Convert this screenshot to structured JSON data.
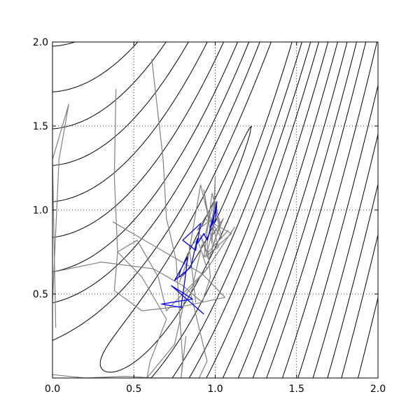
{
  "chart_data": {
    "type": "line",
    "title": "",
    "xlabel": "",
    "ylabel": "",
    "xlim": [
      0.0,
      2.0
    ],
    "ylim": [
      0.0,
      2.0
    ],
    "grid": true,
    "x_ticks": [
      "0.0",
      "0.5",
      "1.0",
      "1.5",
      "2.0"
    ],
    "y_ticks": [
      "0.5",
      "1.0",
      "1.5",
      "2.0"
    ],
    "contour_levels": [
      0.05,
      0.5,
      1.5,
      3,
      5,
      8,
      12,
      17,
      23,
      30,
      40,
      52,
      66,
      82,
      100,
      125
    ],
    "colors": {
      "contour": "#000000",
      "gray_series": "#808080",
      "blue_series": "#0000ff"
    },
    "series": [
      {
        "color": "gray",
        "x": [
          0.02,
          0.0,
          0.1,
          0.04,
          0.0
        ],
        "y": [
          0.3,
          1.3,
          1.63,
          1.3,
          0.45
        ]
      },
      {
        "color": "gray",
        "x": [
          0.0,
          0.3,
          0.62,
          0.8,
          0.92,
          0.97,
          0.95,
          1.0,
          1.03,
          0.98,
          1.05,
          0.97,
          1.0
        ],
        "y": [
          0.63,
          0.69,
          0.65,
          0.55,
          0.45,
          0.6,
          0.8,
          1.05,
          0.9,
          0.78,
          0.95,
          0.83,
          0.88
        ]
      },
      {
        "color": "gray",
        "x": [
          0.0,
          0.2,
          0.45,
          0.62,
          0.9,
          0.95,
          0.85,
          0.92
        ],
        "y": [
          0.02,
          0.0,
          0.01,
          0.0,
          0.0,
          0.1,
          0.5,
          0.8
        ]
      },
      {
        "color": "gray",
        "x": [
          0.39,
          0.38,
          0.4,
          0.55,
          0.7,
          0.6,
          0.58,
          0.75,
          0.82,
          0.95,
          0.9
        ],
        "y": [
          1.72,
          1.2,
          0.75,
          0.6,
          0.35,
          0.1,
          0.0,
          0.2,
          0.5,
          0.65,
          0.8
        ]
      },
      {
        "color": "gray",
        "x": [
          0.61,
          0.68,
          0.7,
          0.76,
          0.78,
          0.8,
          0.79,
          0.82
        ],
        "y": [
          1.9,
          1.3,
          0.95,
          0.7,
          0.4,
          0.1,
          0.0,
          0.25
        ]
      },
      {
        "color": "gray",
        "x": [
          0.37,
          0.6,
          0.92,
          1.06,
          0.82,
          0.55,
          0.38,
          0.4,
          0.52,
          0.65,
          0.7,
          0.95,
          1.12
        ],
        "y": [
          0.93,
          0.8,
          0.62,
          0.48,
          0.43,
          0.4,
          0.52,
          0.75,
          0.82,
          0.6,
          0.4,
          0.65,
          0.9
        ]
      },
      {
        "color": "gray",
        "x": [
          0.78,
          0.83,
          0.91,
          0.96,
          0.93,
          0.98,
          1.0,
          0.99,
          0.95,
          0.91,
          0.96,
          1.03,
          0.98,
          0.93,
          1.08
        ],
        "y": [
          0.57,
          0.7,
          1.15,
          0.95,
          1.12,
          0.8,
          1.2,
          0.9,
          0.75,
          0.85,
          0.7,
          0.92,
          1.1,
          0.72,
          0.88
        ]
      },
      {
        "color": "gray",
        "x": [
          0.88,
          0.86,
          0.84,
          0.94,
          0.99,
          1.04,
          0.97,
          0.89,
          0.96,
          1.02,
          0.94,
          1.1,
          0.93
        ],
        "y": [
          0.45,
          0.62,
          0.78,
          0.86,
          1.05,
          0.83,
          0.94,
          0.88,
          0.99,
          0.78,
          0.72,
          0.86,
          0.95
        ]
      },
      {
        "color": "blue",
        "x": [
          0.93,
          0.73,
          0.86,
          0.67,
          0.79,
          0.82,
          0.83,
          0.75,
          0.85,
          0.89,
          0.88,
          0.8,
          0.91,
          0.89,
          0.93,
          0.95,
          0.99,
          1.01,
          1.0,
          0.97,
          1.01
        ],
        "y": [
          0.38,
          0.55,
          0.47,
          0.44,
          0.42,
          0.63,
          0.72,
          0.58,
          0.66,
          0.83,
          0.76,
          0.82,
          0.92,
          0.8,
          0.86,
          0.82,
          0.95,
          1.05,
          0.94,
          0.9,
          1.02
        ]
      }
    ]
  }
}
